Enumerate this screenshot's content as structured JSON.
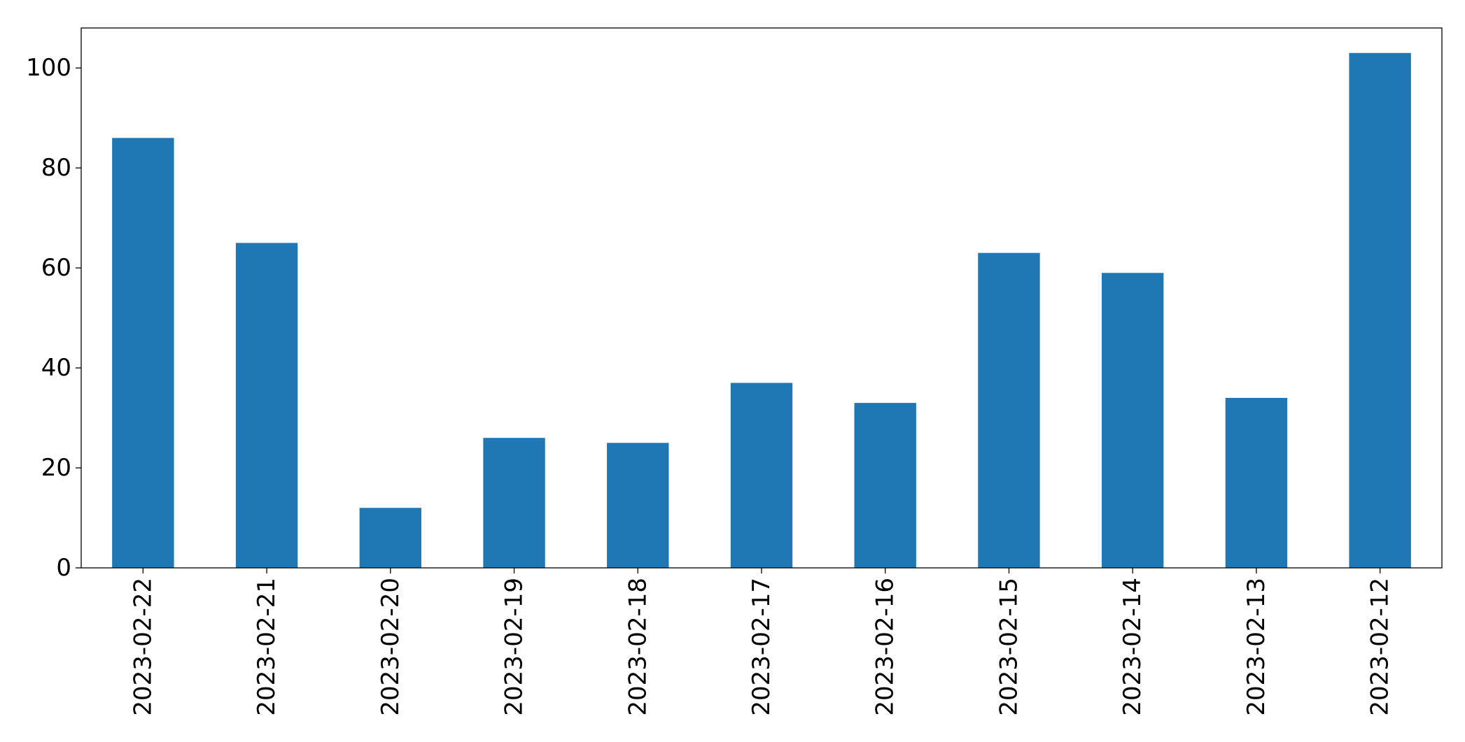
{
  "chart_data": {
    "type": "bar",
    "title": "",
    "xlabel": "",
    "ylabel": "",
    "categories": [
      "2023-02-22",
      "2023-02-21",
      "2023-02-20",
      "2023-02-19",
      "2023-02-18",
      "2023-02-17",
      "2023-02-16",
      "2023-02-15",
      "2023-02-14",
      "2023-02-13",
      "2023-02-12"
    ],
    "values": [
      86,
      65,
      12,
      26,
      25,
      37,
      33,
      63,
      59,
      34,
      103
    ],
    "ylim": [
      0,
      108
    ],
    "yticks": [
      0,
      20,
      40,
      60,
      80,
      100
    ],
    "grid": false,
    "legend": "none",
    "bar_color": "#1f77b4"
  }
}
